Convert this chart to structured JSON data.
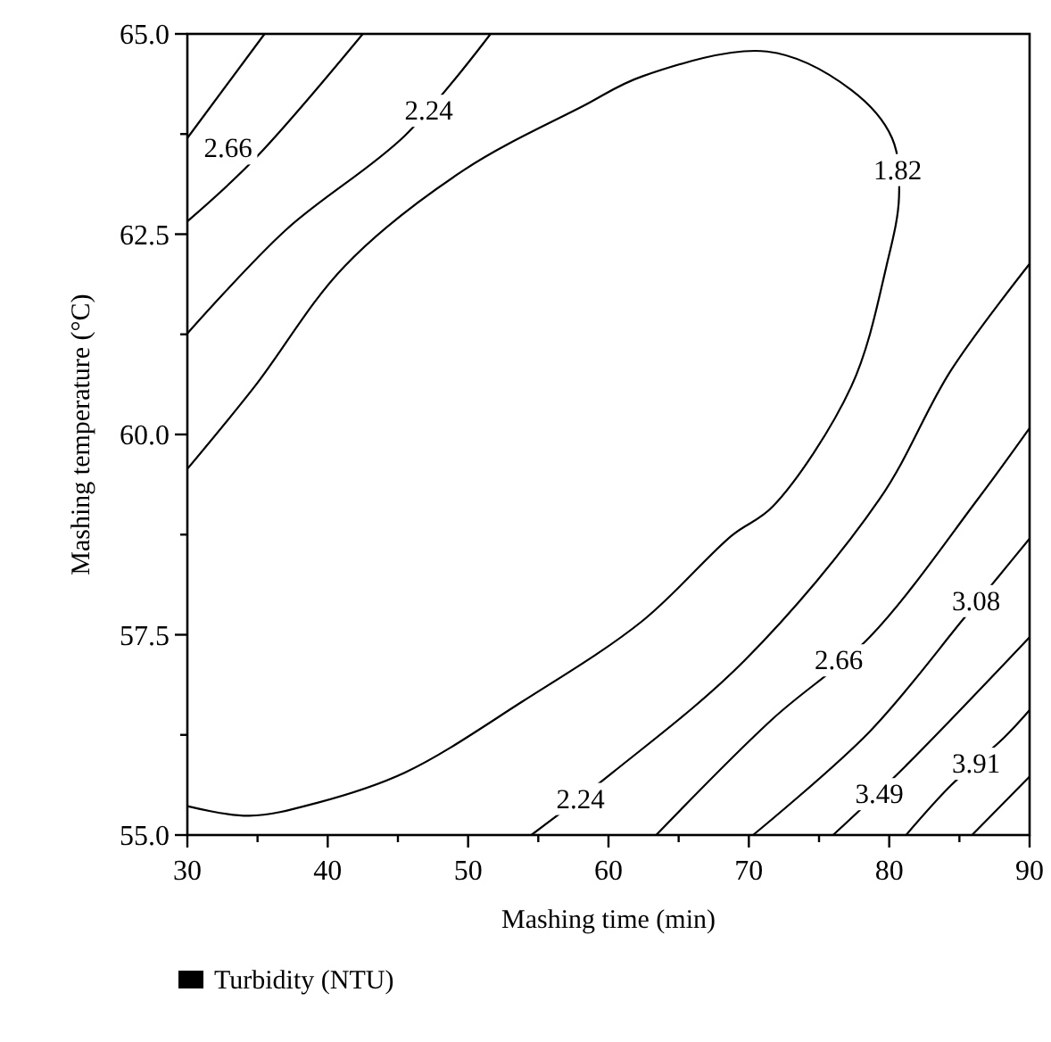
{
  "chart_data": {
    "type": "line",
    "xlabel": "Mashing time (min)",
    "ylabel": "Mashing temperature (°C)",
    "legend_title": "Turbidity (NTU)",
    "xlim": [
      30,
      90
    ],
    "xticks": [
      30,
      {
        "value": 35,
        "label": null
      },
      40,
      {
        "value": 45,
        "label": null
      },
      50,
      {
        "value": 55,
        "label": null
      },
      60,
      {
        "value": 65,
        "label": null
      },
      70,
      {
        "value": 75,
        "label": null
      },
      80,
      {
        "value": 85,
        "label": null
      },
      90
    ],
    "ylim": [
      55,
      65
    ],
    "yticks": [
      {
        "value": 55,
        "label": "55.0"
      },
      {
        "value": 56.25,
        "label": null
      },
      {
        "value": 57.5,
        "label": "57.5"
      },
      {
        "value": 58.75,
        "label": null
      },
      {
        "value": 60,
        "label": "60.0"
      },
      {
        "value": 61.25,
        "label": null
      },
      {
        "value": 62.5,
        "label": "62.5"
      },
      {
        "value": 63.75,
        "label": null
      },
      {
        "value": 65,
        "label": "65.0"
      }
    ],
    "series": [
      {
        "color": "#000000",
        "x": [
          30,
          34.8,
          41.2,
          49.7,
          58.2,
          62.4,
          71.3,
          77.3,
          80.2,
          80.7,
          79.8,
          77.3,
          71.7,
          68.8,
          62.4,
          53.9,
          45.5,
          39.2,
          34.4,
          30
        ],
        "values": [
          59.57,
          60.6,
          62.1,
          63.3,
          64.1,
          64.47,
          64.78,
          64.3,
          63.7,
          62.97,
          62.1,
          60.6,
          59.1,
          58.74,
          57.67,
          56.67,
          55.78,
          55.4,
          55.24,
          55.36
        ]
      },
      {
        "color": "#000000",
        "x": [
          30,
          37,
          45.5,
          51.6
        ],
        "values": [
          61.26,
          62.55,
          63.73,
          65
        ]
      },
      {
        "color": "#000000",
        "x": [
          30,
          34.8,
          42.5
        ],
        "values": [
          62.66,
          63.44,
          65
        ]
      },
      {
        "color": "#000000",
        "x": [
          30,
          35.5
        ],
        "values": [
          63.7,
          65
        ]
      },
      {
        "color": "#000000",
        "x": [
          54.5,
          60.3,
          69.7,
          79.3,
          84.4,
          90
        ],
        "values": [
          55,
          55.78,
          57.18,
          59.19,
          60.8,
          62.13
        ]
      },
      {
        "color": "#000000",
        "x": [
          63.4,
          71.7,
          78.6,
          86.3,
          90
        ],
        "values": [
          55,
          56.45,
          57.47,
          59.19,
          60.08
        ]
      },
      {
        "color": "#000000",
        "x": [
          70.3,
          78.6,
          85.3,
          87.8,
          90
        ],
        "values": [
          55,
          56.29,
          57.7,
          58.23,
          58.7
        ]
      },
      {
        "color": "#000000",
        "x": [
          76,
          81.1,
          90
        ],
        "values": [
          55,
          55.85,
          57.47
        ]
      },
      {
        "color": "#000000",
        "x": [
          81.2,
          84.4,
          88.2,
          90
        ],
        "values": [
          55,
          55.62,
          56.22,
          56.56
        ]
      },
      {
        "color": "#000000",
        "x": [
          85.9,
          90
        ],
        "values": [
          55,
          55.73
        ]
      }
    ],
    "annotations": [
      {
        "text": "2.66",
        "x": 32.9,
        "y": 63.57
      },
      {
        "text": "2.24",
        "x": 47.2,
        "y": 64.04
      },
      {
        "text": "1.82",
        "x": 80.6,
        "y": 63.3
      },
      {
        "text": "2.24",
        "x": 58,
        "y": 55.45
      },
      {
        "text": "2.66",
        "x": 76.4,
        "y": 57.18
      },
      {
        "text": "3.08",
        "x": 86.2,
        "y": 57.92
      },
      {
        "text": "3.49",
        "x": 79.3,
        "y": 55.51
      },
      {
        "text": "3.91",
        "x": 86.2,
        "y": 55.89
      }
    ]
  }
}
